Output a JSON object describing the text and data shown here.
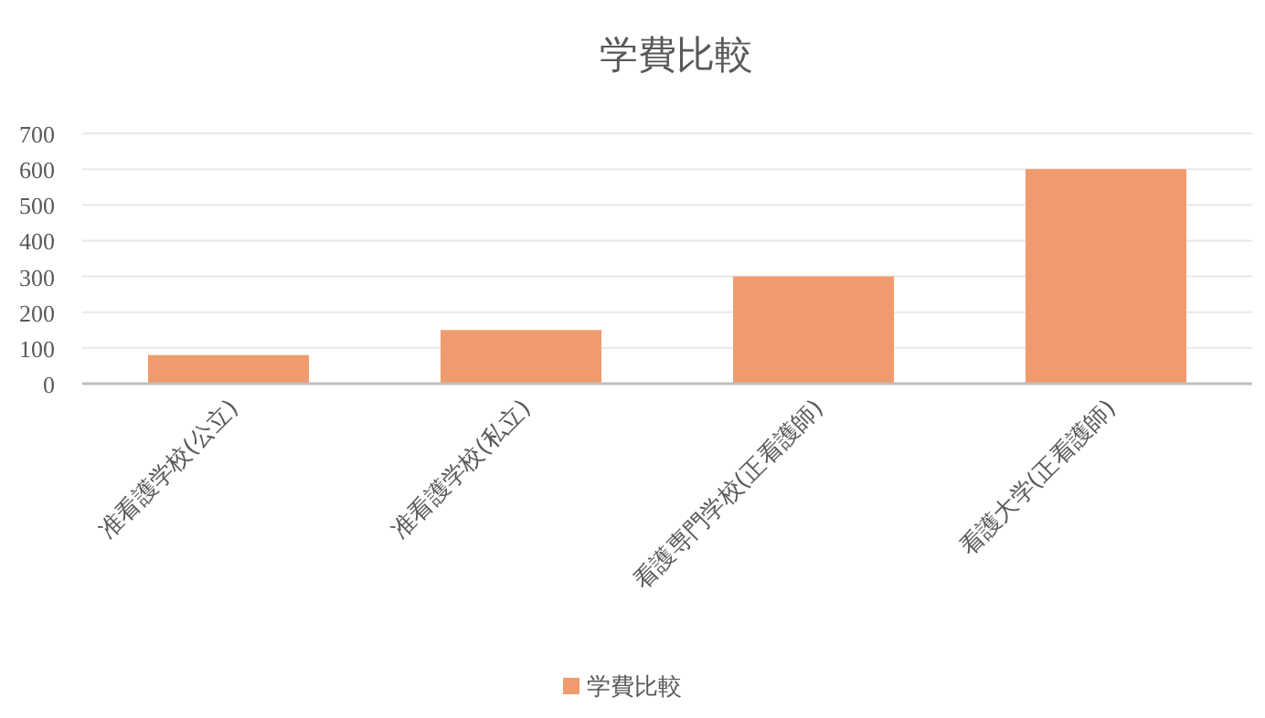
{
  "chart_data": {
    "type": "bar",
    "title": "学費比較",
    "categories": [
      "准看護学校(公立)",
      "准看護学校(私立)",
      "看護専門学校(正看護師)",
      "看護大学(正看護師)"
    ],
    "series": [
      {
        "name": "学費比較",
        "color": "#f09b6e",
        "values": [
          80,
          150,
          300,
          600
        ]
      }
    ],
    "ylim": [
      0,
      700
    ],
    "yticks": [
      0,
      100,
      200,
      300,
      400,
      500,
      600,
      700
    ],
    "grid": "y",
    "legend": "bottom"
  }
}
